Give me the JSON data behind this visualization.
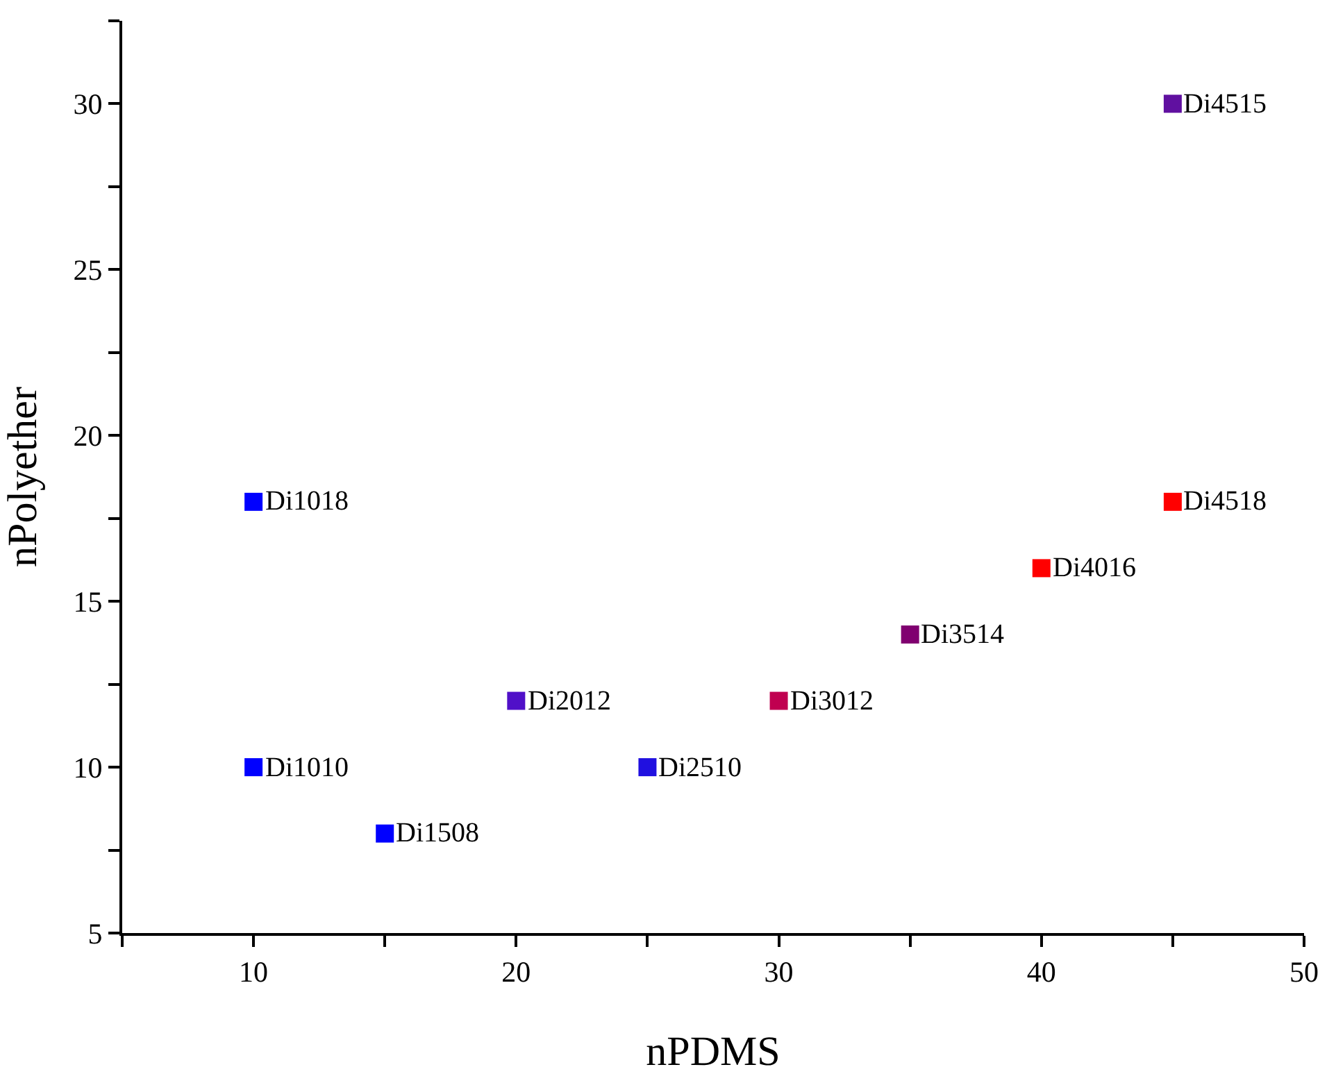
{
  "chart_data": {
    "type": "scatter",
    "xlabel": "nPDMS",
    "ylabel": "nPolyether",
    "x": [
      10,
      10,
      15,
      20,
      25,
      30,
      35,
      40,
      45,
      45
    ],
    "values": [
      18,
      10,
      8,
      12,
      10,
      12,
      14,
      16,
      18,
      30
    ],
    "colors": [
      "#0000ff",
      "#0000ff",
      "#0000ff",
      "#5010c8",
      "#2010e0",
      "#c00050",
      "#800070",
      "#ff0000",
      "#ff0000",
      "#6010a0"
    ],
    "marker": "square",
    "xlim": [
      5,
      50
    ],
    "ylim": [
      5,
      32.5
    ],
    "xticks": [
      {
        "value": 5,
        "label": null
      },
      10,
      {
        "value": 15,
        "label": null
      },
      20,
      {
        "value": 25,
        "label": null
      },
      30,
      {
        "value": 35,
        "label": null
      },
      40,
      {
        "value": 45,
        "label": null
      },
      50
    ],
    "yticks": [
      5,
      {
        "value": 7.5,
        "label": null
      },
      10,
      {
        "value": 12.5,
        "label": null
      },
      15,
      {
        "value": 17.5,
        "label": null
      },
      20,
      {
        "value": 22.5,
        "label": null
      },
      25,
      {
        "value": 27.5,
        "label": null
      },
      30,
      {
        "value": 32.5,
        "label": null
      }
    ],
    "grid": false,
    "legend": false,
    "annotations": [
      {
        "text": "Di1018",
        "x": 10,
        "y": 18
      },
      {
        "text": "Di1010",
        "x": 10,
        "y": 10
      },
      {
        "text": "Di1508",
        "x": 15,
        "y": 8
      },
      {
        "text": "Di2012",
        "x": 20,
        "y": 12
      },
      {
        "text": "Di2510",
        "x": 25,
        "y": 10
      },
      {
        "text": "Di3012",
        "x": 30,
        "y": 12
      },
      {
        "text": "Di3514",
        "x": 35,
        "y": 14
      },
      {
        "text": "Di4016",
        "x": 40,
        "y": 16
      },
      {
        "text": "Di4518",
        "x": 45,
        "y": 18
      },
      {
        "text": "Di4515",
        "x": 45,
        "y": 30
      }
    ]
  }
}
